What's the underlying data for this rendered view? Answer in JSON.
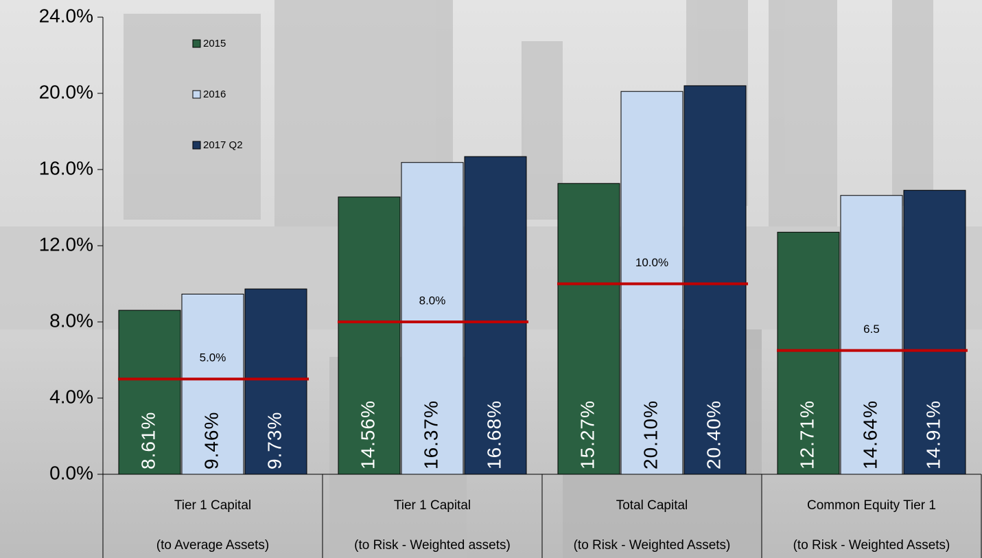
{
  "chart_data": {
    "type": "bar",
    "categories": [
      [
        "Tier 1 Capital",
        "(to Average Assets)"
      ],
      [
        "Tier 1 Capital",
        "(to Risk - Weighted assets)"
      ],
      [
        "Total Capital",
        "(to Risk - Weighted Assets)"
      ],
      [
        "Common Equity Tier 1",
        "(to Risk - Weighted Assets)"
      ]
    ],
    "series": [
      {
        "name": "2015",
        "color": "#2a6041",
        "values": [
          8.61,
          14.56,
          15.27,
          12.71
        ],
        "value_labels": [
          "8.61%",
          "14.56%",
          "15.27%",
          "12.71%"
        ]
      },
      {
        "name": "2016",
        "color": "#c6d9f1",
        "values": [
          9.46,
          16.37,
          20.1,
          14.64
        ],
        "value_labels": [
          "9.46%",
          "16.37%",
          "20.10%",
          "14.64%"
        ]
      },
      {
        "name": "2017 Q2",
        "color": "#1b365d",
        "values": [
          9.73,
          16.68,
          20.4,
          14.91
        ],
        "value_labels": [
          "9.73%",
          "16.68%",
          "20.40%",
          "14.91%"
        ]
      }
    ],
    "thresholds": {
      "color": "#c00000",
      "values": [
        5.0,
        8.0,
        10.0,
        6.5
      ],
      "value_labels": [
        "5.0%",
        "8.0%",
        "10.0%",
        "6.5"
      ]
    },
    "ylim": [
      0,
      24
    ],
    "yticks": [
      {
        "value": 0,
        "label": "0.0%"
      },
      {
        "value": 4,
        "label": "4.0%"
      },
      {
        "value": 8,
        "label": "8.0%"
      },
      {
        "value": 12,
        "label": "12.0%"
      },
      {
        "value": 16,
        "label": "16.0%"
      },
      {
        "value": 20,
        "label": "20.0%"
      },
      {
        "value": 24,
        "label": "24.0%"
      }
    ],
    "legend": "top-left"
  }
}
